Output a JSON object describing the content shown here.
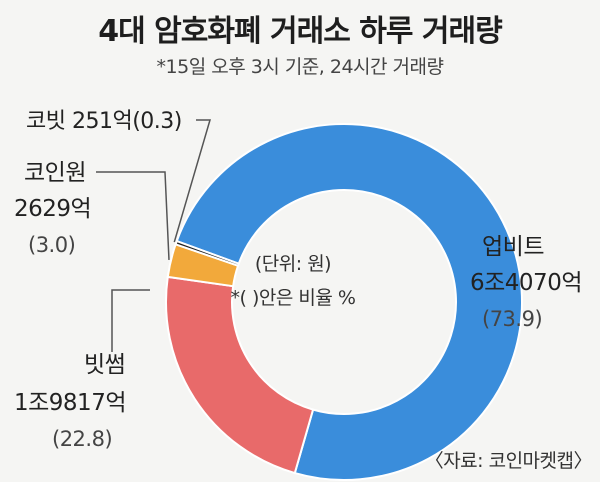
{
  "title": "4대 암호화폐 거래소 하루 거래량",
  "subtitle": "*15일 오후 3시 기준, 24시간 거래량",
  "source": "〈자료: 코인마켓캡〉",
  "center_note": {
    "unit": "(단위: 원)",
    "pct_note": "*( )안은 비율 %"
  },
  "colors": {
    "upbit": "#3a8ddb",
    "bithumb": "#e86a6a",
    "coinone": "#f2a93b",
    "korbit": "#222222",
    "separator": "#ffffff",
    "leader": "#555555"
  },
  "chart_data": {
    "type": "pie",
    "subtype": "donut",
    "title": "4대 암호화폐 거래소 하루 거래량",
    "unit": "원",
    "slices": [
      {
        "name": "업비트",
        "amount_label": "6조4070억",
        "share_label": "(73.9)",
        "value": 73.9
      },
      {
        "name": "빗썸",
        "amount_label": "1조9817억",
        "share_label": "(22.8)",
        "value": 22.8
      },
      {
        "name": "코인원",
        "amount_label": "2629억",
        "share_label": "(3.0)",
        "value": 3.0
      },
      {
        "name": "코빗",
        "amount_label": "251억",
        "share_label": "(0.3)",
        "value": 0.3
      }
    ],
    "korbit_inline_label": "코빗 251억(0.3)",
    "coinone_name_label": "코인원"
  }
}
